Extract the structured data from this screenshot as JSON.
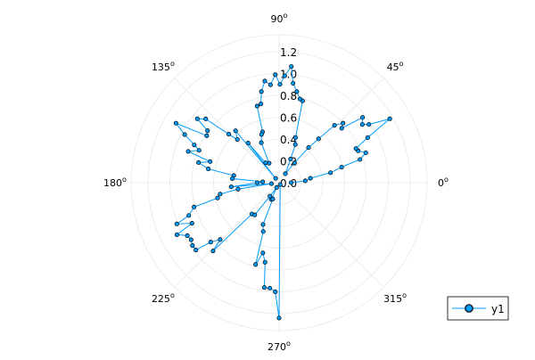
{
  "chart_data": {
    "type": "scatter",
    "projection": "polar",
    "title": "",
    "angle_unit": "degrees",
    "r_ticks": [
      "0.0",
      "0.2",
      "0.4",
      "0.6",
      "0.8",
      "1.0",
      "1.2"
    ],
    "r_tick_values": [
      0,
      0.2,
      0.4,
      0.6,
      0.8,
      1.0,
      1.2
    ],
    "r_max": 1.355,
    "theta_ticks": [
      "0",
      "45",
      "90",
      "135",
      "180",
      "225",
      "270",
      "315"
    ],
    "theta_tick_values": [
      0,
      45,
      90,
      135,
      180,
      225,
      270,
      315
    ],
    "grid": true,
    "legend": {
      "position": "bottom-right",
      "entries": [
        "y1"
      ]
    },
    "colors": {
      "series": "#009af9",
      "marker_stroke": "#000000",
      "grid": "#e8e8e8"
    },
    "series": [
      {
        "name": "y1",
        "marker": "circle",
        "line": true,
        "theta": [
          0,
          4,
          8,
          11,
          14,
          16,
          19,
          22,
          24,
          27,
          30,
          33,
          35,
          38,
          41,
          43,
          46,
          48,
          50,
          52,
          55,
          64,
          67,
          70,
          74,
          76,
          79,
          82,
          84,
          87,
          89.5,
          92,
          95,
          98,
          101,
          103,
          106,
          108,
          110,
          114,
          117,
          124,
          128,
          129,
          130,
          134,
          136,
          139,
          142,
          144,
          147,
          150,
          153,
          156,
          158,
          161,
          163,
          166,
          169,
          171,
          175,
          177,
          180,
          185,
          187,
          189,
          191,
          194,
          196,
          200,
          202,
          205,
          207,
          210,
          213,
          216,
          219,
          221,
          224,
          226,
          229,
          233,
          236,
          243,
          245,
          249,
          249,
          252,
          254,
          257,
          260,
          262,
          265,
          268,
          270,
          300
        ],
        "r": [
          0.11,
          0.24,
          0.29,
          0.48,
          0.59,
          0.77,
          0.84,
          0.78,
          0.77,
          0.91,
          1.17,
          0.98,
          0.93,
          0.97,
          0.76,
          0.8,
          0.73,
          0.54,
          0.42,
          0.23,
          0.1,
          0.24,
          0.38,
          0.44,
          0.78,
          0.79,
          0.85,
          0.92,
          1.07,
          0.98,
          0.9,
          0.99,
          0.9,
          0.94,
          0.85,
          0.74,
          0.73,
          0.49,
          0.47,
          0.4,
          0.2,
          0.22,
          0.46,
          0.05,
          0.62,
          0.55,
          0.64,
          0.89,
          0.95,
          0.81,
          0.79,
          1.09,
          0.97,
          0.85,
          0.79,
          0.88,
          0.66,
          0.76,
          0.66,
          0.42,
          0.43,
          0.15,
          0.2,
          0.44,
          0.07,
          0.38,
          0.55,
          0.58,
          0.81,
          0.88,
          1.01,
          0.88,
          1.05,
          0.97,
          0.96,
          0.98,
          0.98,
          0.83,
          0.75,
          0.87,
          0.38,
          0.37,
          0.15,
          0.05,
          0.17,
          0.16,
          0.41,
          0.47,
          0.78,
          0.66,
          0.74,
          0.97,
          0.97,
          1.0,
          1.24,
          0.02
        ]
      }
    ]
  }
}
